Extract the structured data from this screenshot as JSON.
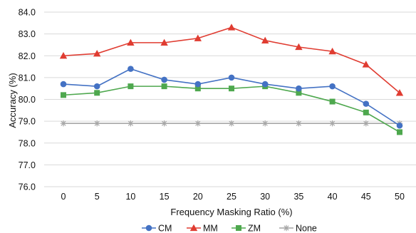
{
  "chart_data": {
    "type": "line",
    "title": "",
    "xlabel": "Frequency Masking Ratio (%)",
    "ylabel": "Accuracy (%)",
    "x": [
      0,
      5,
      10,
      15,
      20,
      25,
      30,
      35,
      40,
      45,
      50
    ],
    "x_tick_labels": [
      "0",
      "5",
      "10",
      "15",
      "20",
      "25",
      "30",
      "35",
      "40",
      "45",
      "50"
    ],
    "ylim": [
      76.0,
      84.0
    ],
    "y_ticks": [
      76.0,
      77.0,
      78.0,
      79.0,
      80.0,
      81.0,
      82.0,
      83.0,
      84.0
    ],
    "y_tick_labels": [
      "76.0",
      "77.0",
      "78.0",
      "79.0",
      "80.0",
      "81.0",
      "82.0",
      "83.0",
      "84.0"
    ],
    "grid": "horizontal",
    "legend_position": "bottom",
    "series": [
      {
        "name": "CM",
        "color": "#4472C4",
        "marker": "circle",
        "values": [
          80.7,
          80.6,
          81.4,
          80.9,
          80.7,
          81.0,
          80.7,
          80.5,
          80.6,
          79.8,
          78.8
        ]
      },
      {
        "name": "MM",
        "color": "#E03C31",
        "marker": "triangle",
        "values": [
          82.0,
          82.1,
          82.6,
          82.6,
          82.8,
          83.3,
          82.7,
          82.4,
          82.2,
          81.6,
          80.3
        ]
      },
      {
        "name": "ZM",
        "color": "#4EA84E",
        "marker": "square",
        "values": [
          80.2,
          80.3,
          80.6,
          80.6,
          80.5,
          80.5,
          80.6,
          80.3,
          79.9,
          79.4,
          78.5
        ]
      },
      {
        "name": "None",
        "color": "#A6A6A6",
        "marker": "star",
        "values": [
          78.9,
          78.9,
          78.9,
          78.9,
          78.9,
          78.9,
          78.9,
          78.9,
          78.9,
          78.9,
          78.9
        ]
      }
    ]
  }
}
